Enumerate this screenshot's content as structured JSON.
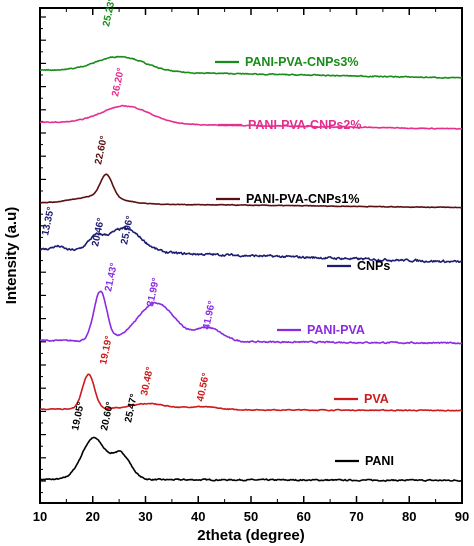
{
  "chart_data": {
    "type": "line",
    "title": "",
    "xlabel": "2theta (degree)",
    "ylabel": "Intensity (a.u)",
    "xlim": [
      10,
      90
    ],
    "x_ticks": [
      10,
      20,
      30,
      40,
      50,
      60,
      70,
      80,
      90
    ],
    "y_ticks_labeled": false,
    "grid": false,
    "legend_placement": "inline-right",
    "series": [
      {
        "name": "PANI",
        "color": "#000000",
        "profile": {
          "baseline_start": 0.1,
          "baseline_end": 0.06,
          "noise": 0.04,
          "peaks": [
            {
              "x": 19.05,
              "height": 0.85,
              "width": 2.8
            },
            {
              "x": 20.6,
              "height": 0.7,
              "width": 2.4
            },
            {
              "x": 25.47,
              "height": 0.9,
              "width": 2.5
            },
            {
              "x": 22.5,
              "height": 0.35,
              "width": 3.0
            }
          ]
        },
        "peak_labels": [
          "19.05°",
          "20.60°",
          "25.47°"
        ]
      },
      {
        "name": "PVA",
        "color": "#cc1b1b",
        "profile": {
          "baseline_start": 0.1,
          "baseline_end": 0.05,
          "noise": 0.025,
          "peaks": [
            {
              "x": 19.19,
              "height": 1.2,
              "width": 1.6
            },
            {
              "x": 30.48,
              "height": 0.2,
              "width": 5.0
            },
            {
              "x": 40.56,
              "height": 0.1,
              "width": 4.0
            }
          ]
        },
        "peak_labels": [
          "19.19°",
          "30.48°",
          "40.56°"
        ]
      },
      {
        "name": "PANI-PVA",
        "color": "#8a2be2",
        "profile": {
          "baseline_start": 0.12,
          "baseline_end": 0.05,
          "noise": 0.03,
          "peaks": [
            {
              "x": 21.43,
              "height": 1.3,
              "width": 1.7
            },
            {
              "x": 31.99,
              "height": 1.0,
              "width": 5.0
            },
            {
              "x": 41.96,
              "height": 0.35,
              "width": 3.5
            }
          ]
        },
        "peak_labels": [
          "21.43°",
          "31.99°",
          "41.96°"
        ]
      },
      {
        "name": "CNPs",
        "color": "#1c1c70",
        "profile": {
          "baseline_start": 0.35,
          "baseline_end": 0.0,
          "noise": 0.05,
          "peaks": [
            {
              "x": 13.35,
              "height": 0.1,
              "width": 1.5
            },
            {
              "x": 20.46,
              "height": 0.3,
              "width": 2.0
            },
            {
              "x": 25.96,
              "height": 0.65,
              "width": 4.5
            }
          ]
        },
        "peak_labels": [
          "13.35°",
          "20.46°",
          "25.96°"
        ]
      },
      {
        "name": "PANI-PVA-CNPs1%",
        "color": "#5a0f12",
        "profile": {
          "baseline_start": 0.2,
          "baseline_end": 0.02,
          "noise": 0.02,
          "peaks": [
            {
              "x": 22.6,
              "height": 0.9,
              "width": 1.6
            },
            {
              "x": 21.0,
              "height": 0.3,
              "width": 6.0
            }
          ]
        },
        "peak_labels": [
          "22.60°"
        ]
      },
      {
        "name": "PANI-PVA-CNPs2%",
        "color": "#e62e8f",
        "profile": {
          "baseline_start": 0.35,
          "baseline_end": 0.05,
          "noise": 0.03,
          "peaks": [
            {
              "x": 26.2,
              "height": 0.8,
              "width": 6.5
            }
          ]
        },
        "peak_labels": [
          "26.20°"
        ]
      },
      {
        "name": "PANI-PVA-CNPs3%",
        "color": "#1a8c1a",
        "profile": {
          "baseline_start": 0.4,
          "baseline_end": 0.0,
          "noise": 0.04,
          "peaks": [
            {
              "x": 25.23,
              "height": 0.75,
              "width": 6.5
            }
          ]
        },
        "peak_labels": [
          "25.23°"
        ]
      }
    ]
  }
}
